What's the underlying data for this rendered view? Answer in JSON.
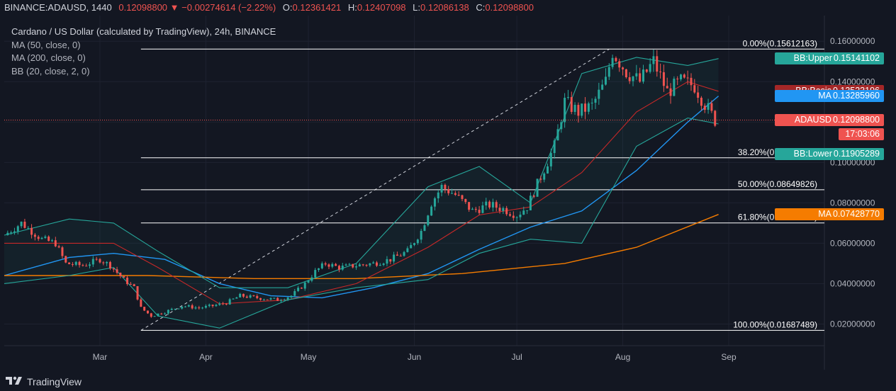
{
  "header": {
    "symbol": "BINANCE:ADAUSD, 1440",
    "last": "0.12098800",
    "change": "−0.00274614 (−2.22%)",
    "o_label": "O:",
    "o": "0.12361421",
    "h_label": "H:",
    "h": "0.12407098",
    "l_label": "L:",
    "l": "0.12086138",
    "c_label": "C:",
    "c": "0.12098800"
  },
  "legend": {
    "title": "Cardano / US Dollar (calculated by TradingView), 24h, BINANCE",
    "ma50": "MA (50, close, 0)",
    "ma200": "MA (200, close, 0)",
    "bb": "BB (20, close, 2, 0)"
  },
  "footer": {
    "brand": "TradingView"
  },
  "colors": {
    "bg": "#131722",
    "up": "#26a69a",
    "down": "#ef5350",
    "ma50": "#2196f3",
    "ma200": "#f57c00",
    "bb_basis": "#c62828",
    "bb_band": "#26a69a",
    "fib": "#ffffff"
  },
  "tags": [
    {
      "label": "BB:Upper",
      "value": "0.15141102",
      "color": "#26a69a",
      "y": 0.15141102
    },
    {
      "label": "BB:Basis",
      "value": "0.13523196",
      "color": "#a52727",
      "y": 0.13523196
    },
    {
      "label": "MA",
      "value": "0.13285960",
      "color": "#2196f3",
      "y": 0.1328596
    },
    {
      "label": "ADAUSD",
      "value": "0.12098800",
      "color": "#ef5350",
      "y": 0.120988
    },
    {
      "label": "",
      "value": "17:03:06",
      "color": "#ef5350",
      "y": 0.114
    },
    {
      "label": "BB:Lower",
      "value": "0.11905289",
      "color": "#26a69a",
      "y": 0.104
    },
    {
      "label": "MA",
      "value": "0.07428770",
      "color": "#f57c00",
      "y": 0.0742877
    }
  ],
  "chart_data": {
    "type": "candlestick",
    "title": "Cardano / US Dollar (calculated by TradingView), 24h, BINANCE",
    "x_range": [
      "2021-02-01",
      "2021-09-29"
    ],
    "ylim": [
      0.0093,
      0.1727
    ],
    "y_ticks": [
      "0.16000000",
      "0.14000000",
      "0.12000000",
      "0.10000000",
      "0.08000000",
      "0.06000000",
      "0.04000000",
      "0.02000000"
    ],
    "y_tick_values": [
      0.16,
      0.14,
      0.12,
      0.1,
      0.08,
      0.06,
      0.04,
      0.02
    ],
    "x_ticks": [
      {
        "label": "Mar",
        "date": "2021-03-01"
      },
      {
        "label": "Apr",
        "date": "2021-04-01"
      },
      {
        "label": "May",
        "date": "2021-05-01"
      },
      {
        "label": "Jun",
        "date": "2021-06-01"
      },
      {
        "label": "Jul",
        "date": "2021-07-01"
      },
      {
        "label": "Aug",
        "date": "2021-08-01"
      },
      {
        "label": "Sep",
        "date": "2021-09-01"
      }
    ],
    "close_series": [
      [
        "2021-02-01",
        0.064
      ],
      [
        "2021-02-06",
        0.07
      ],
      [
        "2021-02-12",
        0.062
      ],
      [
        "2021-02-16",
        0.06
      ],
      [
        "2021-02-19",
        0.05
      ],
      [
        "2021-02-24",
        0.049
      ],
      [
        "2021-03-01",
        0.052
      ],
      [
        "2021-03-04",
        0.049
      ],
      [
        "2021-03-08",
        0.042
      ],
      [
        "2021-03-11",
        0.038
      ],
      [
        "2021-03-13",
        0.028
      ],
      [
        "2021-03-16",
        0.024
      ],
      [
        "2021-03-20",
        0.026
      ],
      [
        "2021-03-25",
        0.029
      ],
      [
        "2021-03-30",
        0.028
      ],
      [
        "2021-04-03",
        0.029
      ],
      [
        "2021-04-07",
        0.0305
      ],
      [
        "2021-04-11",
        0.034
      ],
      [
        "2021-04-16",
        0.033
      ],
      [
        "2021-04-22",
        0.032
      ],
      [
        "2021-04-26",
        0.034
      ],
      [
        "2021-04-30",
        0.04
      ],
      [
        "2021-05-03",
        0.046
      ],
      [
        "2021-05-06",
        0.05
      ],
      [
        "2021-05-10",
        0.048
      ],
      [
        "2021-05-15",
        0.049
      ],
      [
        "2021-05-20",
        0.05
      ],
      [
        "2021-05-25",
        0.052
      ],
      [
        "2021-05-30",
        0.056
      ],
      [
        "2021-06-03",
        0.066
      ],
      [
        "2021-06-06",
        0.08
      ],
      [
        "2021-06-09",
        0.088
      ],
      [
        "2021-06-13",
        0.084
      ],
      [
        "2021-06-18",
        0.076
      ],
      [
        "2021-06-23",
        0.079
      ],
      [
        "2021-06-27",
        0.077
      ],
      [
        "2021-07-01",
        0.074
      ],
      [
        "2021-07-04",
        0.078
      ],
      [
        "2021-07-08",
        0.093
      ],
      [
        "2021-07-12",
        0.108
      ],
      [
        "2021-07-15",
        0.13
      ],
      [
        "2021-07-19",
        0.125
      ],
      [
        "2021-07-23",
        0.128
      ],
      [
        "2021-07-27",
        0.14
      ],
      [
        "2021-07-29",
        0.155
      ],
      [
        "2021-08-02",
        0.145
      ],
      [
        "2021-08-06",
        0.14
      ],
      [
        "2021-08-10",
        0.15
      ],
      [
        "2021-08-14",
        0.135
      ],
      [
        "2021-08-18",
        0.14
      ],
      [
        "2021-08-22",
        0.138
      ],
      [
        "2021-08-25",
        0.129
      ],
      [
        "2021-08-28",
        0.1209
      ]
    ],
    "series": [
      {
        "name": "MA (50, close, 0)",
        "points": [
          [
            "2021-02-01",
            0.044
          ],
          [
            "2021-02-20",
            0.053
          ],
          [
            "2021-03-05",
            0.055
          ],
          [
            "2021-03-20",
            0.052
          ],
          [
            "2021-04-05",
            0.04
          ],
          [
            "2021-04-20",
            0.034
          ],
          [
            "2021-05-05",
            0.033
          ],
          [
            "2021-05-20",
            0.038
          ],
          [
            "2021-06-05",
            0.045
          ],
          [
            "2021-06-20",
            0.057
          ],
          [
            "2021-07-05",
            0.068
          ],
          [
            "2021-07-20",
            0.076
          ],
          [
            "2021-08-05",
            0.096
          ],
          [
            "2021-08-20",
            0.12
          ],
          [
            "2021-08-29",
            0.1328596
          ]
        ]
      },
      {
        "name": "MA (200, close, 0)",
        "points": [
          [
            "2021-02-01",
            0.044
          ],
          [
            "2021-03-15",
            0.044
          ],
          [
            "2021-04-15",
            0.0425
          ],
          [
            "2021-05-15",
            0.0425
          ],
          [
            "2021-06-15",
            0.045
          ],
          [
            "2021-07-15",
            0.05
          ],
          [
            "2021-08-05",
            0.058
          ],
          [
            "2021-08-29",
            0.0742877
          ]
        ]
      },
      {
        "name": "BB (20, close, 2, 0) basis",
        "points": [
          [
            "2021-02-01",
            0.06
          ],
          [
            "2021-03-05",
            0.06
          ],
          [
            "2021-03-18",
            0.048
          ],
          [
            "2021-04-05",
            0.03
          ],
          [
            "2021-04-25",
            0.032
          ],
          [
            "2021-05-15",
            0.04
          ],
          [
            "2021-06-05",
            0.058
          ],
          [
            "2021-06-20",
            0.074
          ],
          [
            "2021-07-05",
            0.078
          ],
          [
            "2021-07-20",
            0.095
          ],
          [
            "2021-08-05",
            0.125
          ],
          [
            "2021-08-20",
            0.14
          ],
          [
            "2021-08-29",
            0.13523196
          ]
        ]
      },
      {
        "name": "BB upper",
        "points": [
          [
            "2021-02-01",
            0.064
          ],
          [
            "2021-02-20",
            0.072
          ],
          [
            "2021-03-05",
            0.07
          ],
          [
            "2021-03-18",
            0.056
          ],
          [
            "2021-04-05",
            0.038
          ],
          [
            "2021-04-25",
            0.038
          ],
          [
            "2021-05-15",
            0.05
          ],
          [
            "2021-06-05",
            0.088
          ],
          [
            "2021-06-20",
            0.098
          ],
          [
            "2021-07-05",
            0.08
          ],
          [
            "2021-07-20",
            0.144
          ],
          [
            "2021-08-05",
            0.152
          ],
          [
            "2021-08-20",
            0.148
          ],
          [
            "2021-08-29",
            0.15141102
          ]
        ]
      },
      {
        "name": "BB lower",
        "points": [
          [
            "2021-02-01",
            0.04
          ],
          [
            "2021-02-20",
            0.044
          ],
          [
            "2021-03-05",
            0.048
          ],
          [
            "2021-03-18",
            0.024
          ],
          [
            "2021-04-05",
            0.018
          ],
          [
            "2021-04-25",
            0.032
          ],
          [
            "2021-05-15",
            0.038
          ],
          [
            "2021-06-05",
            0.042
          ],
          [
            "2021-06-20",
            0.055
          ],
          [
            "2021-07-05",
            0.062
          ],
          [
            "2021-07-20",
            0.06
          ],
          [
            "2021-08-05",
            0.108
          ],
          [
            "2021-08-20",
            0.122
          ],
          [
            "2021-08-29",
            0.11905289
          ]
        ]
      }
    ],
    "fib_levels": [
      {
        "label": "0.00%(0.15612163)",
        "value": 0.15612163
      },
      {
        "label": "38.20%(0.10229798)",
        "value": 0.10229798
      },
      {
        "label": "50.00%(0.08649826)",
        "value": 0.08649826
      },
      {
        "label": "61.80%(0.07006714)",
        "value": 0.07006714
      },
      {
        "label": "100.00%(0.01687489)",
        "value": 0.01687489
      }
    ],
    "fib_start": "2021-03-13",
    "fib_end": "2021-07-28",
    "current_price": 0.120988,
    "grid": true,
    "legend_position": "top-left"
  }
}
